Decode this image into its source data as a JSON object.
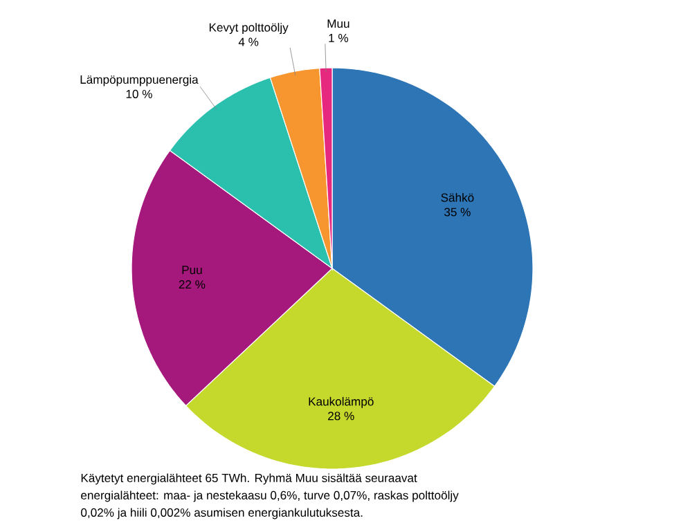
{
  "chart_data": {
    "type": "pie",
    "categories": [
      "Sähkö",
      "Kaukolämpö",
      "Puu",
      "Lämpöpumppuenergia",
      "Kevyt polttoöljy",
      "Muu"
    ],
    "values": [
      35,
      28,
      22,
      10,
      4,
      1
    ],
    "value_labels": [
      "35 %",
      "28 %",
      "22 %",
      "10 %",
      "4 %",
      "1 %"
    ],
    "colors": [
      "#2e75b6",
      "#c5d92d",
      "#a5197c",
      "#2bbfae",
      "#f7962f",
      "#e6287e"
    ],
    "annotations": [
      "Käytetyt energialähteet 65 TWh. Ryhmä Muu sisältää seuraavat",
      "energialähteet: maa- ja nestekaasu 0,6%, turve 0,07%, raskas polttoöljy",
      "0,02% ja hiili 0,002% asumisen energiankulutuksesta."
    ]
  }
}
